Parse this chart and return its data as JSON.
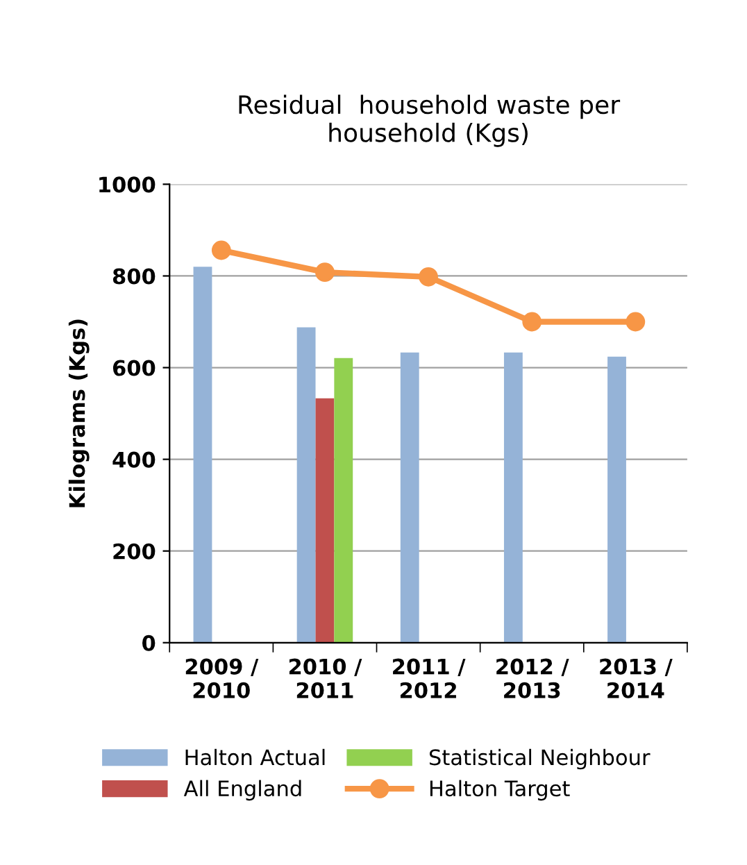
{
  "chart_data": {
    "type": "bar",
    "title": "Residual  household waste per\nhousehold (Kgs)",
    "ylabel": "Kilograms (Kgs)",
    "categories": [
      "2009 /\n2010",
      "2010 /\n2011",
      "2011 /\n2012",
      "2012 /\n2013",
      "2013 /\n2014"
    ],
    "series": [
      {
        "name": "Halton Actual",
        "color": "#95b3d7",
        "values": [
          820,
          688,
          633,
          633,
          624
        ]
      },
      {
        "name": "All England",
        "color": "#c0504d",
        "values": [
          null,
          533,
          null,
          null,
          null
        ]
      },
      {
        "name": "Statistical Neighbour",
        "color": "#92d050",
        "values": [
          null,
          621,
          null,
          null,
          null
        ]
      },
      {
        "name": "Halton Target",
        "type": "line",
        "color": "#f79646",
        "marker": "circle",
        "values": [
          856,
          808,
          798,
          700,
          700
        ]
      }
    ],
    "ylim": [
      0,
      1000
    ],
    "yticks": [
      0,
      200,
      400,
      600,
      800,
      1000
    ],
    "grid": "y",
    "legend": "bottom"
  }
}
